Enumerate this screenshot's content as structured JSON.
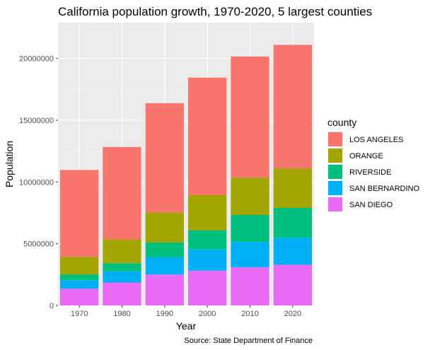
{
  "chart_data": {
    "type": "bar",
    "stacked": true,
    "title": "California population growth, 1970-2020, 5 largest counties",
    "xlabel": "Year",
    "ylabel": "Population",
    "caption": "Source: State Department of Finance",
    "categories": [
      "1970",
      "1980",
      "1990",
      "2000",
      "2010",
      "2020"
    ],
    "ylim": [
      0,
      22900000
    ],
    "yticks": [
      0,
      5000000,
      10000000,
      15000000,
      20000000
    ],
    "ytick_labels": [
      "0",
      "5000000",
      "10000000",
      "15000000",
      "20000000"
    ],
    "grid": true,
    "legend_position": "right",
    "legend_title": "county",
    "series": [
      {
        "name": "SAN DIEGO",
        "color": "#E76BF3",
        "values": [
          1360000,
          1860000,
          2500000,
          2820000,
          3100000,
          3300000
        ]
      },
      {
        "name": "SAN BERNARDINO",
        "color": "#00B0F6",
        "values": [
          690000,
          900000,
          1420000,
          1720000,
          2040000,
          2180000
        ]
      },
      {
        "name": "RIVERSIDE",
        "color": "#00BF7D",
        "values": [
          460000,
          660000,
          1180000,
          1550000,
          2190000,
          2420000
        ]
      },
      {
        "name": "ORANGE",
        "color": "#A3A500",
        "values": [
          1420000,
          1930000,
          2420000,
          2840000,
          3010000,
          3190000
        ]
      },
      {
        "name": "LOS ANGELES",
        "color": "#F8766D",
        "values": [
          7040000,
          7480000,
          8860000,
          9520000,
          9820000,
          10010000
        ]
      }
    ],
    "legend_order": [
      "LOS ANGELES",
      "ORANGE",
      "RIVERSIDE",
      "SAN BERNARDINO",
      "SAN DIEGO"
    ]
  }
}
